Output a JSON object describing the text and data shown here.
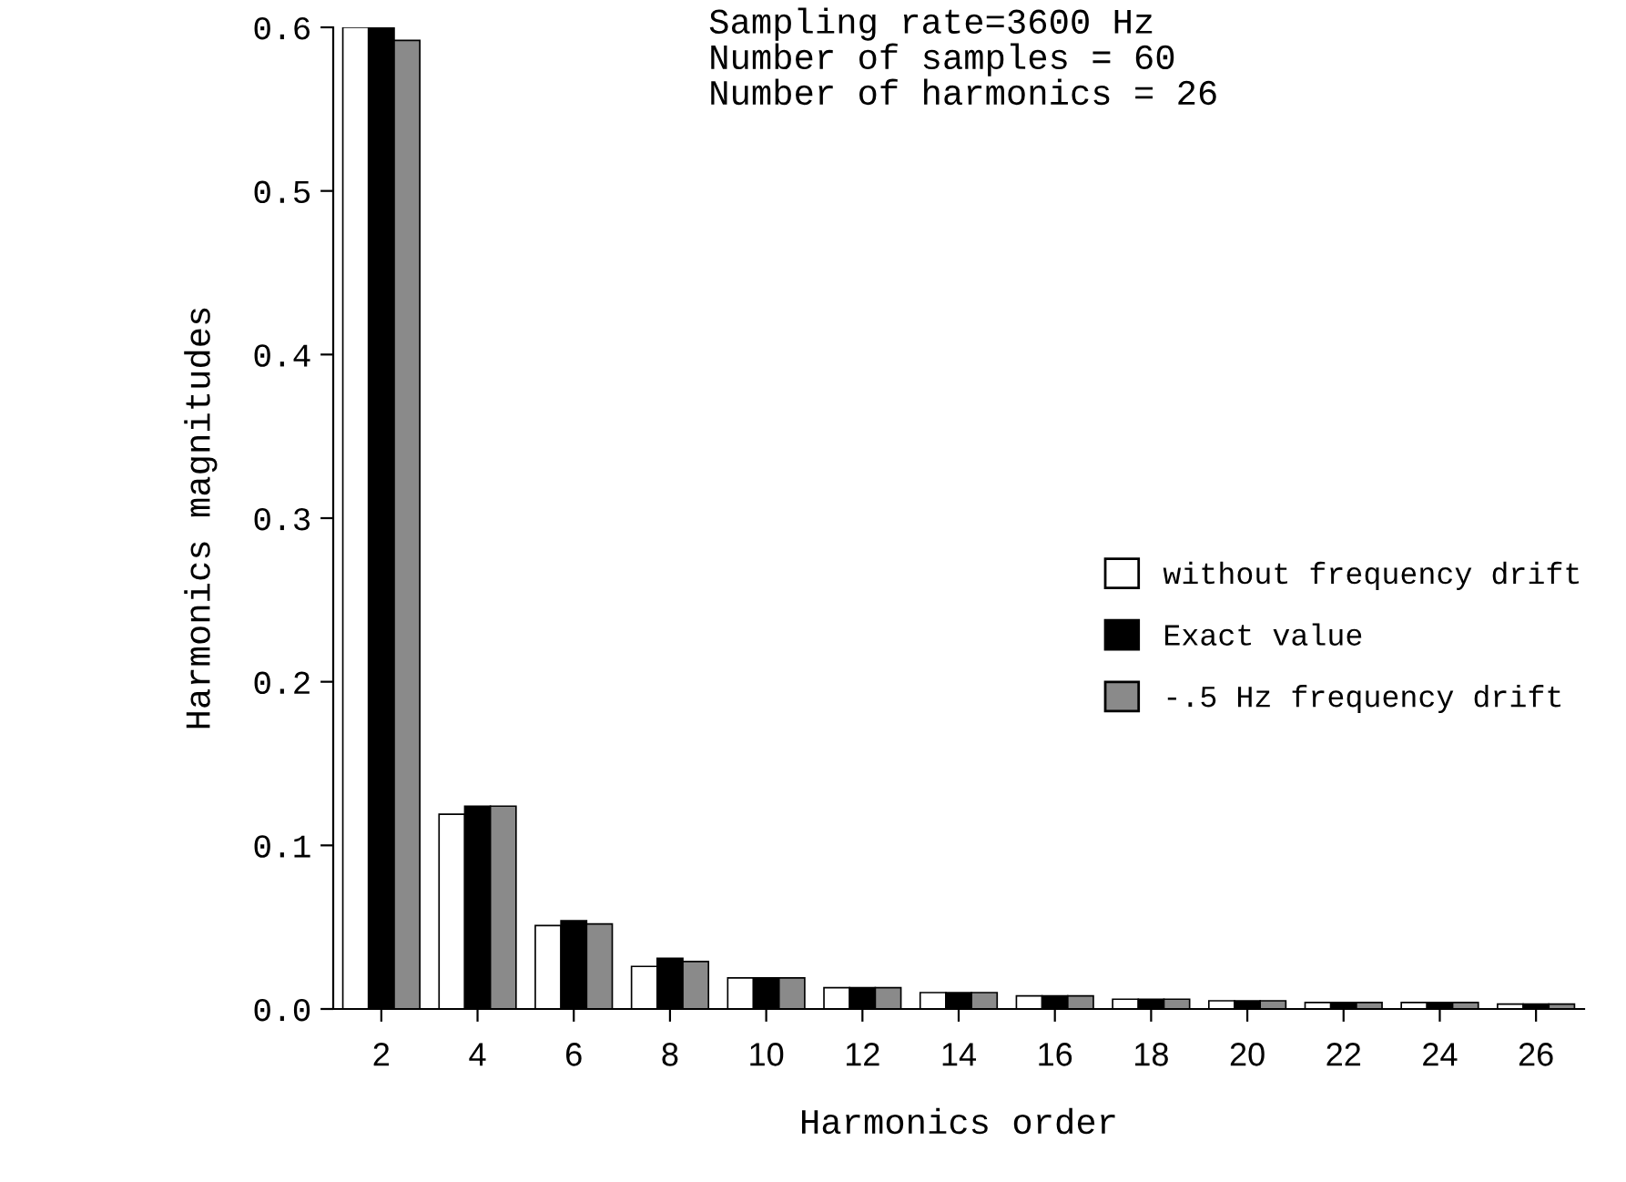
{
  "chart_data": {
    "type": "bar",
    "xlabel": "Harmonics order",
    "ylabel": "Harmonics magnitudes",
    "annotations": [
      "Sampling rate=3600 Hz",
      "Number of samples = 60",
      "Number of harmonics = 26"
    ],
    "categories": [
      "2",
      "4",
      "6",
      "8",
      "10",
      "12",
      "14",
      "16",
      "18",
      "20",
      "22",
      "24",
      "26"
    ],
    "series": [
      {
        "name": "without frequency drift",
        "color": "#ffffff",
        "values": [
          0.6,
          0.119,
          0.051,
          0.026,
          0.019,
          0.013,
          0.01,
          0.008,
          0.006,
          0.005,
          0.004,
          0.004,
          0.003
        ]
      },
      {
        "name": "Exact value",
        "color": "#000000",
        "values": [
          0.6,
          0.124,
          0.054,
          0.031,
          0.019,
          0.013,
          0.01,
          0.008,
          0.006,
          0.005,
          0.004,
          0.004,
          0.003
        ]
      },
      {
        "name": "-.5 Hz frequency drift",
        "color": "#8a8a8a",
        "values": [
          0.592,
          0.124,
          0.052,
          0.029,
          0.019,
          0.013,
          0.01,
          0.008,
          0.006,
          0.005,
          0.004,
          0.004,
          0.003
        ]
      }
    ],
    "ylim": [
      0,
      0.6
    ],
    "yticks": [
      {
        "value": 0,
        "label": "0.0"
      },
      {
        "value": 0.1,
        "label": "0.1"
      },
      {
        "value": 0.2,
        "label": "0.2"
      },
      {
        "value": 0.3,
        "label": "0.3"
      },
      {
        "value": 0.4,
        "label": "0.4"
      },
      {
        "value": 0.5,
        "label": "0.5"
      },
      {
        "value": 0.6,
        "label": "0.6"
      }
    ],
    "grid": false,
    "legend": "right"
  }
}
